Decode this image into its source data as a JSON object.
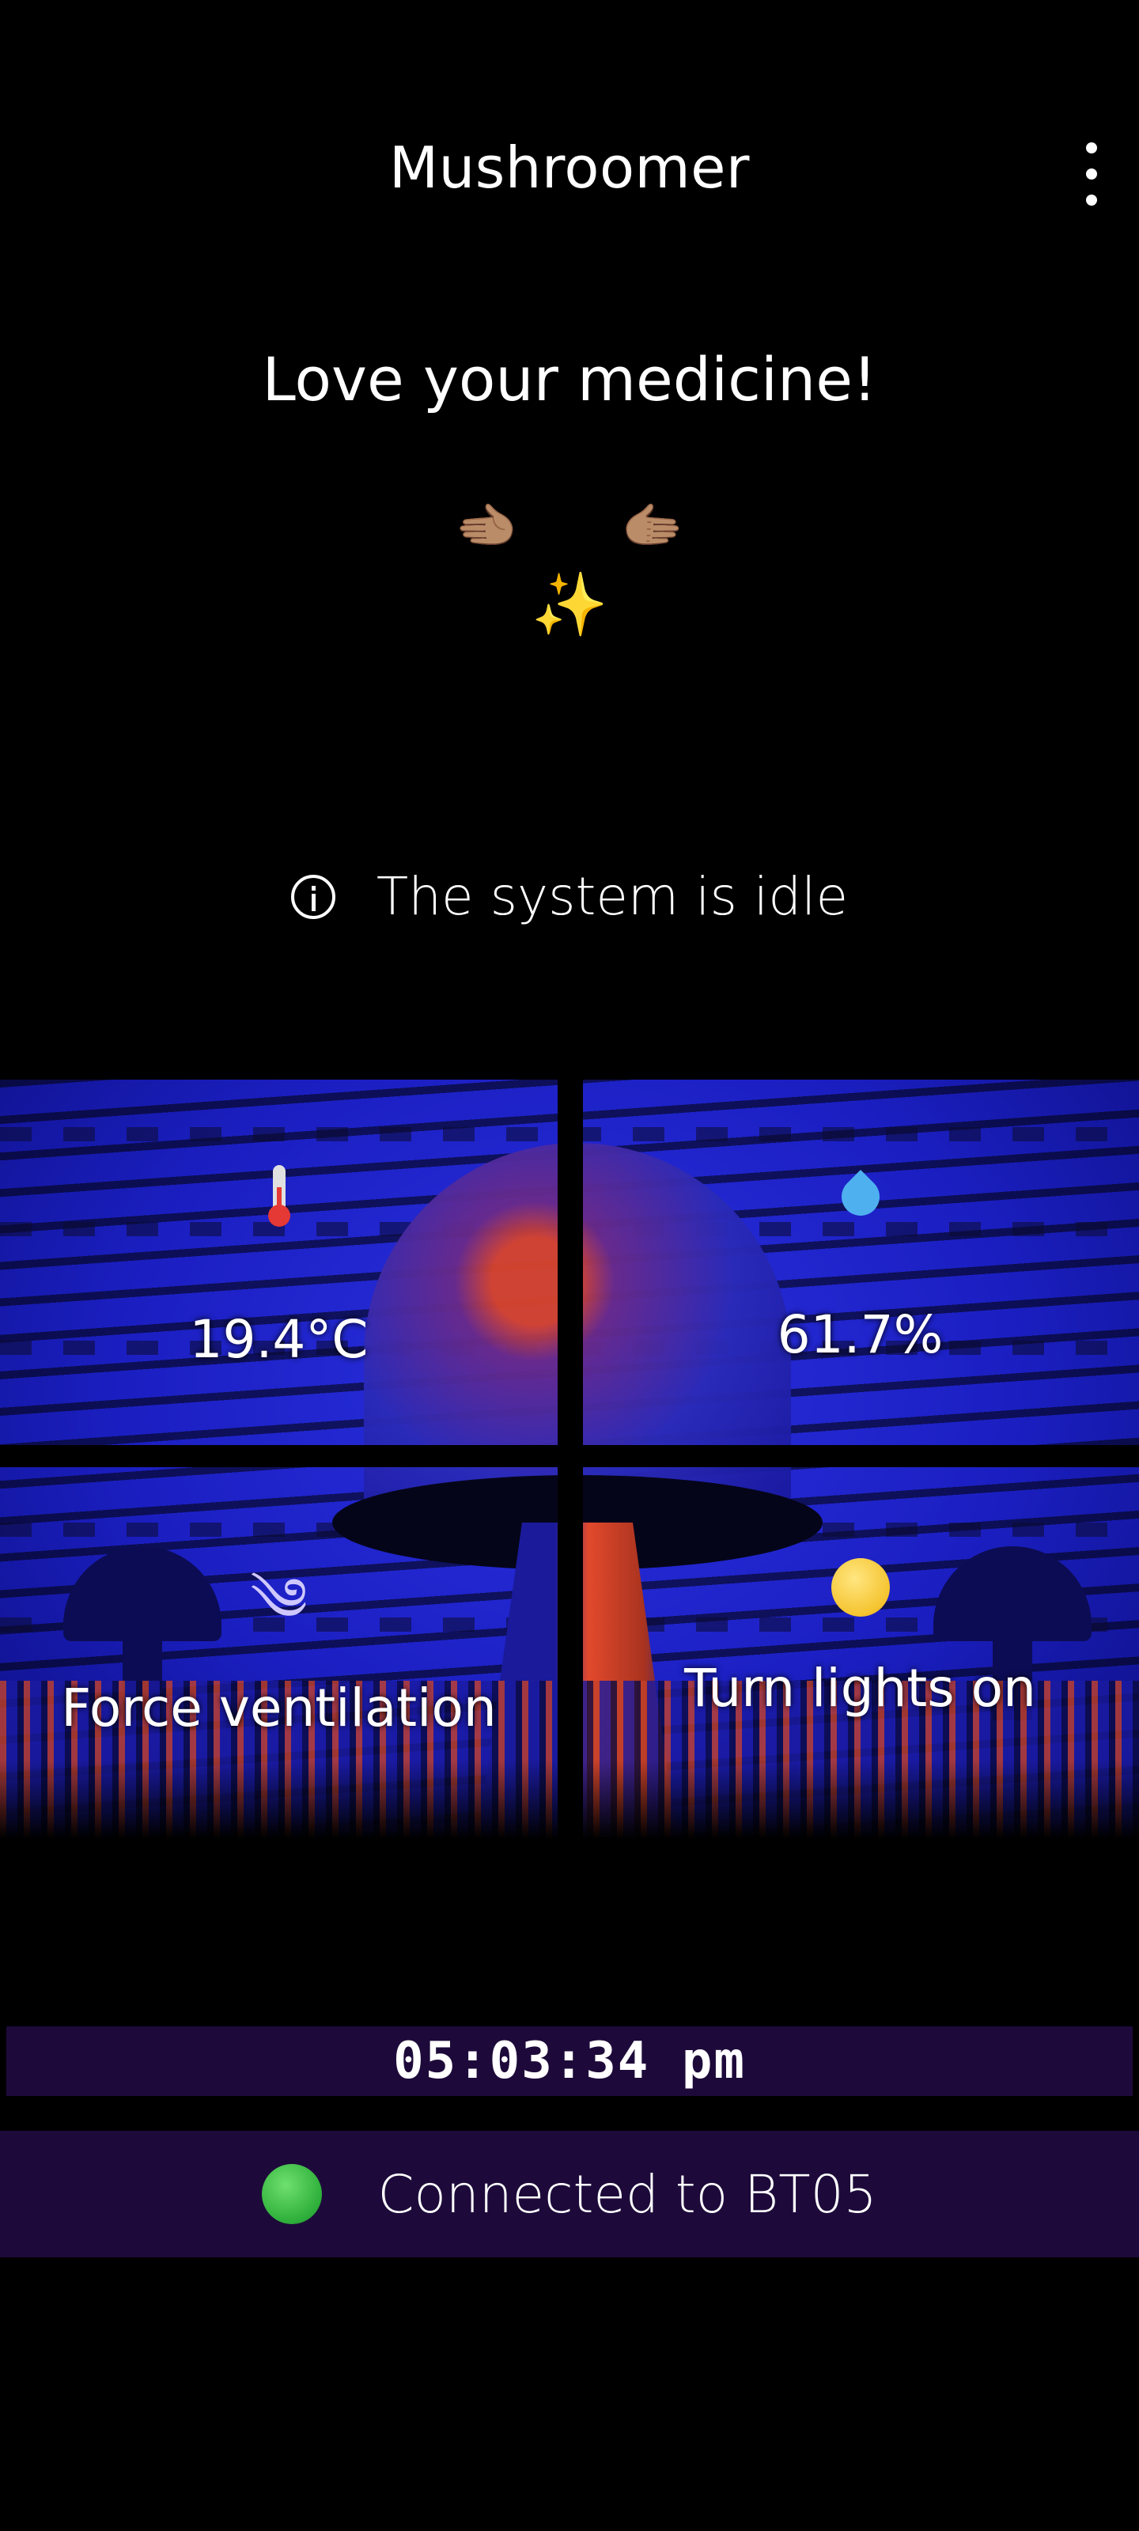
{
  "app": {
    "title": "Mushroomer"
  },
  "header": {
    "greeting": "Love your medicine!",
    "emoji_left": "🫲🏽",
    "emoji_right": "🫱🏽",
    "sparkle": "✨"
  },
  "status": {
    "text": "The system is idle",
    "icon": "info-icon"
  },
  "tiles": {
    "temperature": {
      "icon": "thermometer-icon",
      "value": "19.4°C"
    },
    "humidity": {
      "icon": "water-drop-icon",
      "value": "61.7%"
    },
    "ventilation": {
      "icon": "wind-icon",
      "glyph": "༄",
      "label": "Force ventilation"
    },
    "lights": {
      "icon": "light-bulb-icon",
      "label": "Turn lights on"
    }
  },
  "clock": {
    "time": "05:03:34 pm"
  },
  "connection": {
    "text": "Connected to BT05",
    "status_color": "#2eae3a"
  },
  "colors": {
    "background": "#000000",
    "bar_bg": "#1d0a3a"
  }
}
